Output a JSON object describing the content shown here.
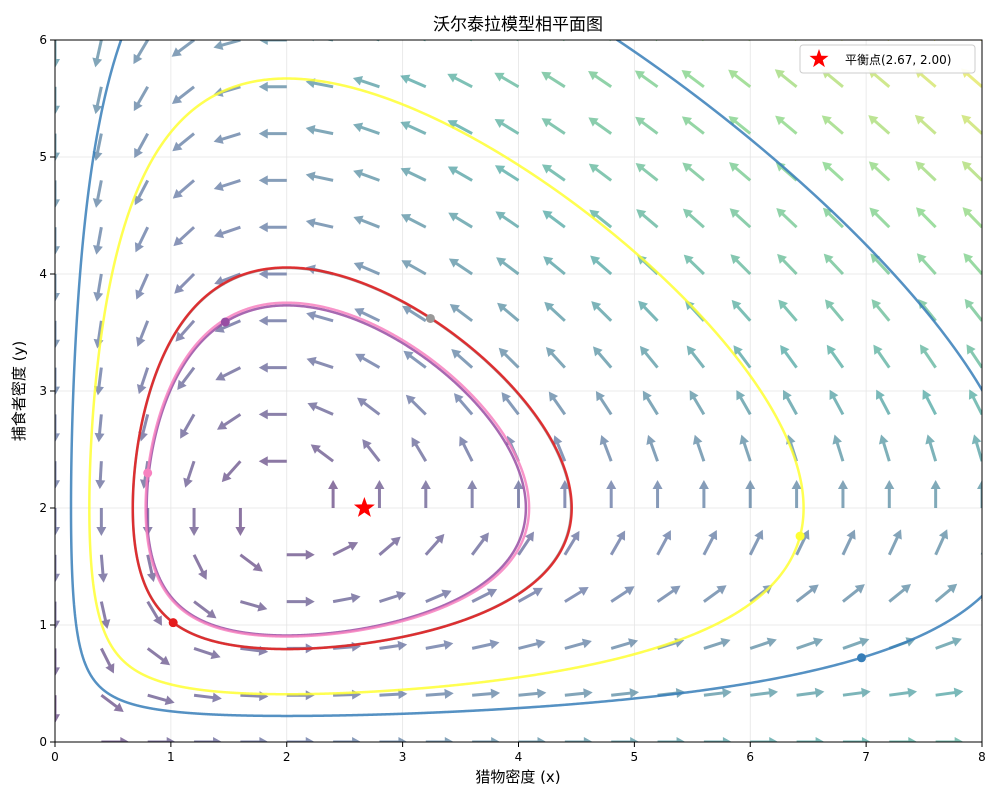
{
  "chart_data": {
    "type": "phase-portrait",
    "title": "沃尔泰拉模型相平面图",
    "xlabel": "猎物密度 (x)",
    "ylabel": "捕食者密度 (y)",
    "xlim": [
      0,
      8
    ],
    "ylim": [
      0,
      6
    ],
    "xticks": [
      0,
      1,
      2,
      3,
      4,
      5,
      6,
      7,
      8
    ],
    "yticks": [
      0,
      1,
      2,
      3,
      4,
      5,
      6
    ],
    "grid": true,
    "legend_position": "top-right",
    "model": {
      "a": 1.0,
      "b": 0.5,
      "c": 0.75,
      "d": 0.375
    },
    "equilibrium": {
      "x": 2.67,
      "y": 2.0,
      "label": "平衡点(2.67, 2.00)",
      "color": "#ff0000"
    },
    "vector_field": {
      "x_start": 0,
      "x_end": 8,
      "x_step": 0.4,
      "y_start": 0,
      "y_end": 6,
      "y_step": 0.4,
      "colormap": [
        "#440154",
        "#3b528b",
        "#21918c",
        "#5ec962",
        "#fde725"
      ],
      "opacity": 0.6
    },
    "trajectories": [
      {
        "marker": [
          3.24,
          3.62
        ],
        "color": "#999999"
      },
      {
        "marker": [
          1.47,
          3.59
        ],
        "color": "#984ea3"
      },
      {
        "marker": [
          0.8,
          2.3
        ],
        "color": "#f781bf"
      },
      {
        "marker": [
          6.43,
          1.76
        ],
        "color": "#ffff33"
      },
      {
        "marker": [
          1.02,
          1.02
        ],
        "color": "#e41a1c"
      },
      {
        "marker": [
          6.96,
          0.72
        ],
        "color": "#377eb8"
      }
    ]
  }
}
